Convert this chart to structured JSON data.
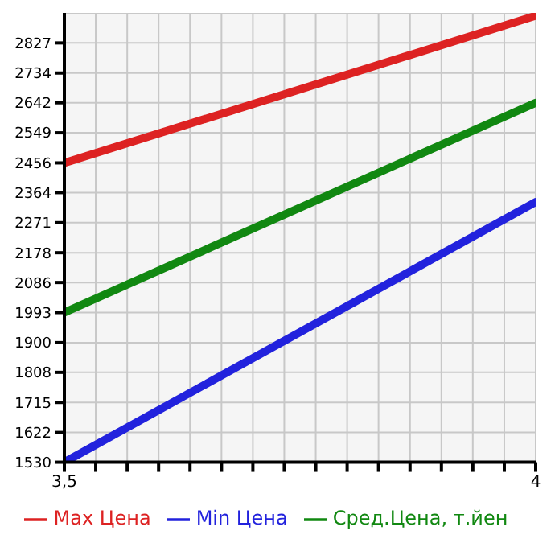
{
  "chart_data": {
    "type": "line",
    "x": [
      3.5,
      4
    ],
    "series": [
      {
        "name": "Max Цена",
        "color": "#dd2222",
        "values": [
          2456,
          2911
        ]
      },
      {
        "name": "Min Цена",
        "color": "#2222dd",
        "values": [
          1530,
          2335
        ]
      },
      {
        "name": "Сред.Цена, т.йен",
        "color": "#118811",
        "values": [
          1993,
          2642
        ]
      }
    ],
    "xlim": [
      3.5,
      4
    ],
    "xticks": [
      {
        "value": 3.5,
        "label": "3,5"
      },
      {
        "value": 3.5333,
        "label": null
      },
      {
        "value": 3.5667,
        "label": null
      },
      {
        "value": 3.6,
        "label": null
      },
      {
        "value": 3.6333,
        "label": null
      },
      {
        "value": 3.6667,
        "label": null
      },
      {
        "value": 3.7,
        "label": null
      },
      {
        "value": 3.7333,
        "label": null
      },
      {
        "value": 3.7667,
        "label": null
      },
      {
        "value": 3.8,
        "label": null
      },
      {
        "value": 3.8333,
        "label": null
      },
      {
        "value": 3.8667,
        "label": null
      },
      {
        "value": 3.9,
        "label": null
      },
      {
        "value": 3.9333,
        "label": null
      },
      {
        "value": 3.9667,
        "label": null
      },
      4
    ],
    "ylim": [
      1530,
      2920
    ],
    "yticks": [
      1530,
      1622,
      1715,
      1808,
      1900,
      1993,
      2086,
      2178,
      2271,
      2364,
      2456,
      2549,
      2642,
      2734,
      2827
    ],
    "grid": true,
    "legend": "bottom",
    "marker": "none",
    "line_style": "solid"
  }
}
